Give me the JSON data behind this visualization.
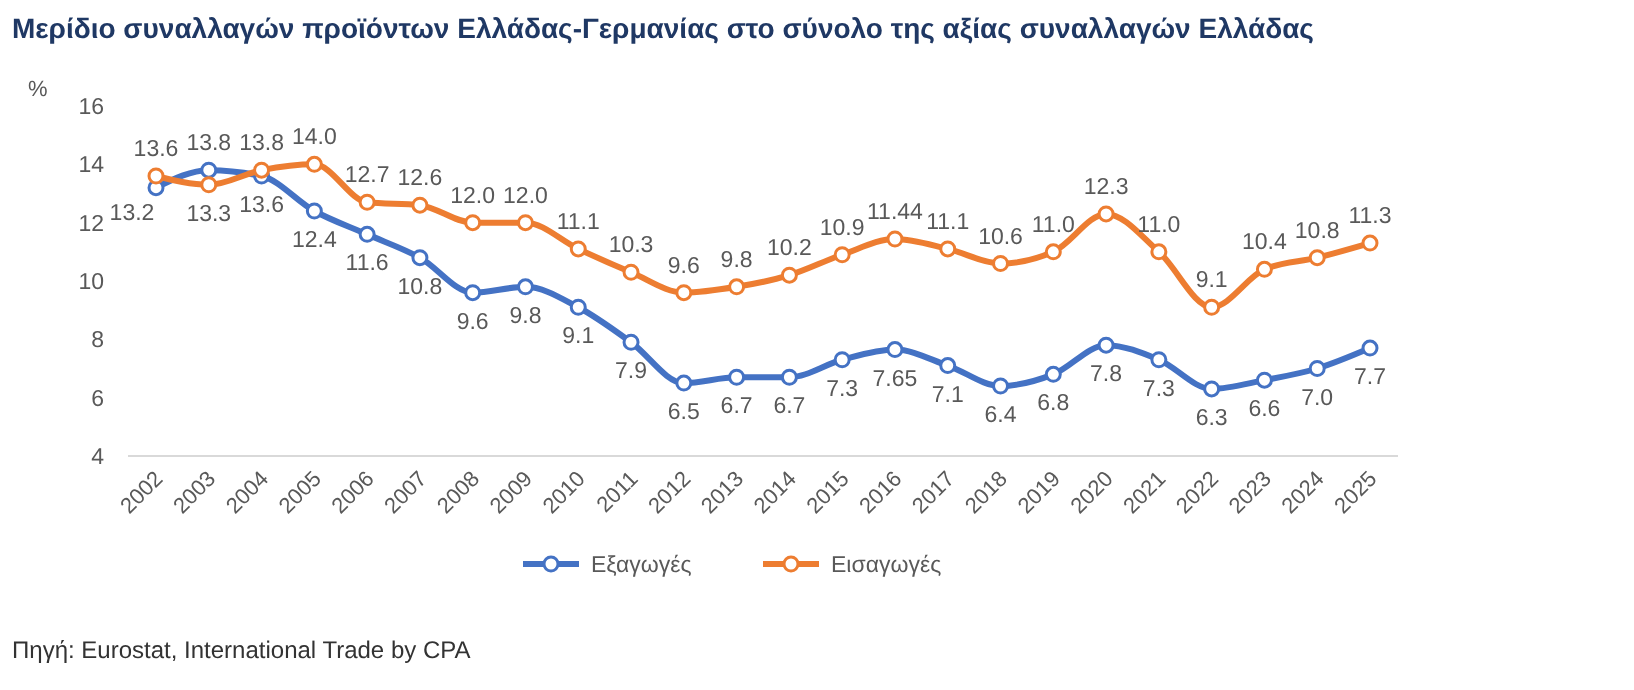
{
  "chart_data": {
    "type": "line",
    "title": "Μερίδιο συναλλαγών προϊόντων Ελλάδας-Γερμανίας στο σύνολο της αξίας συναλλαγών Ελλάδας",
    "ylabel": "%",
    "categories": [
      "2002",
      "2003",
      "2004",
      "2005",
      "2006",
      "2007",
      "2008",
      "2009",
      "2010",
      "2011",
      "2012",
      "2013",
      "2014",
      "2015",
      "2016",
      "2017",
      "2018",
      "2019",
      "2020",
      "2021",
      "2022",
      "2023",
      "2024",
      "2025"
    ],
    "series": [
      {
        "name": "Εξαγωγές",
        "color": "#4472c4",
        "values": [
          13.2,
          13.8,
          13.6,
          12.4,
          11.6,
          10.8,
          9.6,
          9.8,
          9.1,
          7.9,
          6.5,
          6.7,
          6.7,
          7.3,
          7.65,
          7.1,
          6.4,
          6.8,
          7.8,
          7.3,
          6.3,
          6.6,
          7.0,
          7.7
        ],
        "value_labels": [
          "13.2",
          "13.8",
          "13.6",
          "12.4",
          "11.6",
          "10.8",
          "9.6",
          "9.8",
          "9.1",
          "7.9",
          "6.5",
          "6.7",
          "6.7",
          "7.3",
          "7.65",
          "7.1",
          "6.4",
          "6.8",
          "7.8",
          "7.3",
          "6.3",
          "6.6",
          "7.0",
          "7.7"
        ]
      },
      {
        "name": "Εισαγωγές",
        "color": "#ed7d31",
        "values": [
          13.6,
          13.3,
          13.8,
          14.0,
          12.7,
          12.6,
          12.0,
          12.0,
          11.1,
          10.3,
          9.6,
          9.8,
          10.2,
          10.9,
          11.44,
          11.1,
          10.6,
          11.0,
          12.3,
          11.0,
          9.1,
          10.4,
          10.8,
          11.3
        ],
        "value_labels": [
          "13.6",
          "13.3",
          "13.8",
          "14.0",
          "12.7",
          "12.6",
          "12.0",
          "12.0",
          "11.1",
          "10.3",
          "9.6",
          "9.8",
          "10.2",
          "10.9",
          "11.44",
          "11.1",
          "10.6",
          "11.0",
          "12.3",
          "11.0",
          "9.1",
          "10.4",
          "10.8",
          "11.3"
        ]
      }
    ],
    "ylim": [
      4,
      16
    ],
    "yticks": [
      4,
      6,
      8,
      10,
      12,
      14,
      16
    ],
    "grid": false,
    "legend": "bottom",
    "marker": "circle",
    "line_style": "solid",
    "annotations": [
      "Πηγή: Eurostat, International Trade by CPA"
    ]
  }
}
